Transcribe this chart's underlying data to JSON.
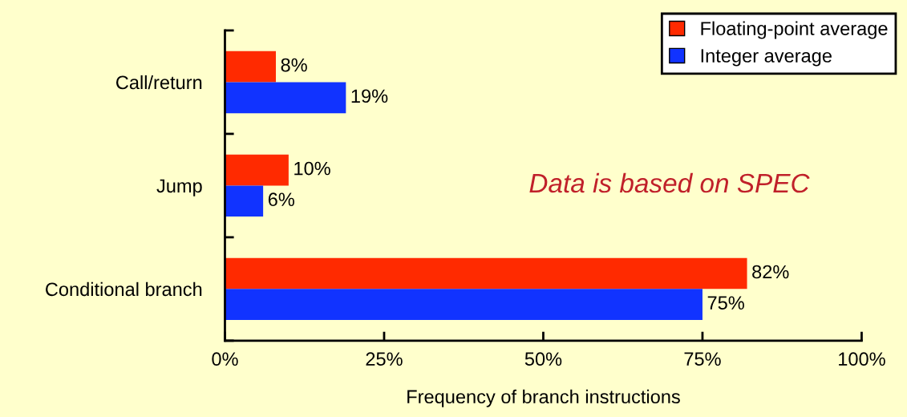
{
  "chart_data": {
    "type": "bar",
    "orientation": "horizontal",
    "categories": [
      "Call/return",
      "Jump",
      "Conditional branch"
    ],
    "series": [
      {
        "name": "Floating-point average",
        "color": "#ff2a00",
        "values": [
          8,
          10,
          82
        ],
        "value_labels": [
          "8%",
          "10%",
          "82%"
        ]
      },
      {
        "name": "Integer average",
        "color": "#1133ff",
        "values": [
          19,
          6,
          75
        ],
        "value_labels": [
          "19%",
          "6%",
          "75%"
        ]
      }
    ],
    "xlabel": "Frequency of branch instructions",
    "xlim": [
      0,
      100
    ],
    "xticks": [
      {
        "value": 0,
        "label": "0%"
      },
      {
        "value": 25,
        "label": "25%"
      },
      {
        "value": 50,
        "label": "50%"
      },
      {
        "value": 75,
        "label": "75%"
      },
      {
        "value": 100,
        "label": "100%"
      }
    ],
    "annotations": [
      "Data is based on SPEC"
    ],
    "legend": "top right",
    "grid": false
  }
}
